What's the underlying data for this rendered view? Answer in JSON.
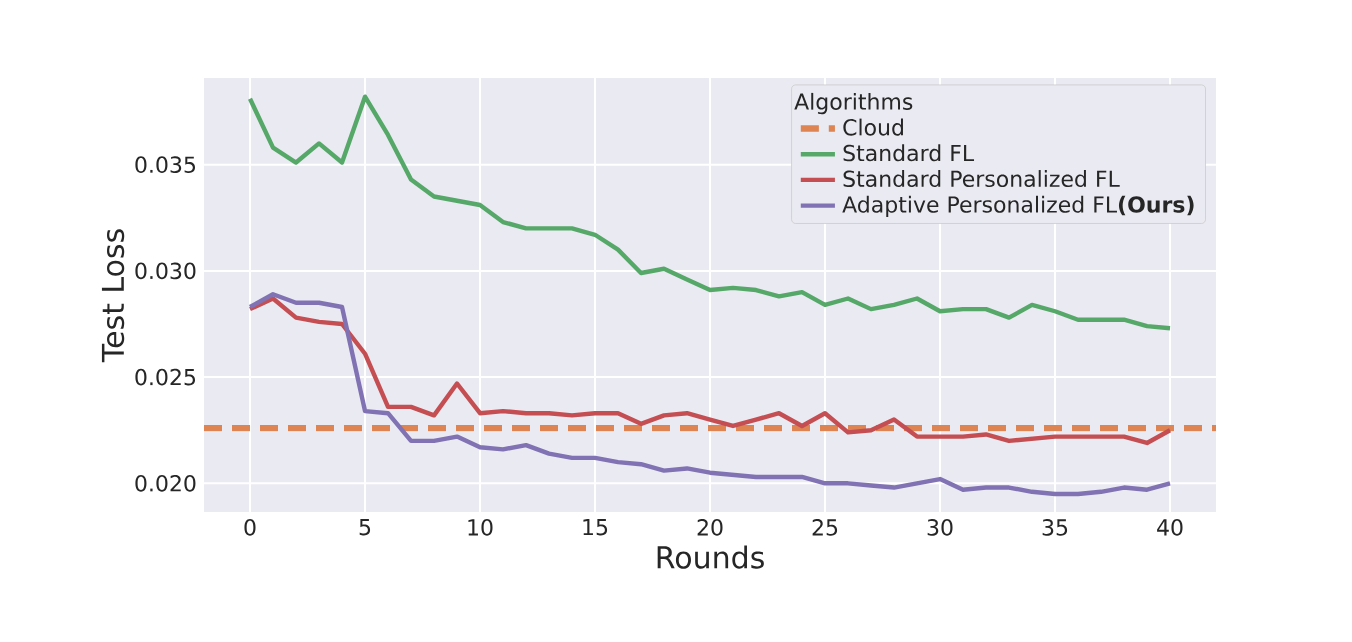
{
  "chart_data": {
    "type": "line",
    "xlabel": "Rounds",
    "ylabel": "Test Loss",
    "legend_title": "Algorithms",
    "legend": "top right",
    "grid": true,
    "xlim": [
      -2,
      42
    ],
    "ylim": [
      0.01865,
      0.03908
    ],
    "xticks": [
      0,
      5,
      10,
      15,
      20,
      25,
      30,
      35,
      40
    ],
    "yticks": [
      {
        "value": 0.02,
        "label": "0.020"
      },
      {
        "value": 0.025,
        "label": "0.025"
      },
      {
        "value": 0.03,
        "label": "0.030"
      },
      {
        "value": 0.035,
        "label": "0.035"
      }
    ],
    "x": [
      0,
      1,
      2,
      3,
      4,
      5,
      6,
      7,
      8,
      9,
      10,
      11,
      12,
      13,
      14,
      15,
      16,
      17,
      18,
      19,
      20,
      21,
      22,
      23,
      24,
      25,
      26,
      27,
      28,
      29,
      30,
      31,
      32,
      33,
      34,
      35,
      36,
      37,
      38,
      39,
      40
    ],
    "series": [
      {
        "name": "Cloud",
        "color": "#dd8452",
        "line_style": "dashed",
        "x": [
          -2,
          42
        ],
        "values": [
          0.0226,
          0.0226
        ]
      },
      {
        "name": "Standard FL",
        "color": "#55a868",
        "values": [
          0.0381,
          0.0358,
          0.0351,
          0.036,
          0.0351,
          0.0382,
          0.0364,
          0.0343,
          0.0335,
          0.0333,
          0.0331,
          0.0323,
          0.032,
          0.032,
          0.032,
          0.0317,
          0.031,
          0.0299,
          0.0301,
          0.0296,
          0.0291,
          0.0292,
          0.0291,
          0.0288,
          0.029,
          0.0284,
          0.0287,
          0.0282,
          0.0284,
          0.0287,
          0.0281,
          0.0282,
          0.0282,
          0.0278,
          0.0284,
          0.0281,
          0.0277,
          0.0277,
          0.0277,
          0.0274,
          0.0273
        ]
      },
      {
        "name": "Standard Personalized FL",
        "color": "#c44e52",
        "values": [
          0.0282,
          0.0287,
          0.0278,
          0.0276,
          0.0275,
          0.0261,
          0.0236,
          0.0236,
          0.0232,
          0.0247,
          0.0233,
          0.0234,
          0.0233,
          0.0233,
          0.0232,
          0.0233,
          0.0233,
          0.0228,
          0.0232,
          0.0233,
          0.023,
          0.0227,
          0.023,
          0.0233,
          0.0227,
          0.0233,
          0.0224,
          0.0225,
          0.023,
          0.0222,
          0.0222,
          0.0222,
          0.0223,
          0.022,
          0.0221,
          0.0222,
          0.0222,
          0.0222,
          0.0222,
          0.0219,
          0.0225
        ]
      },
      {
        "name": "Adaptive Personalized FL**(Ours)**",
        "color": "#8172b3",
        "values": [
          0.0283,
          0.0289,
          0.0285,
          0.0285,
          0.0283,
          0.0234,
          0.0233,
          0.022,
          0.022,
          0.0222,
          0.0217,
          0.0216,
          0.0218,
          0.0214,
          0.0212,
          0.0212,
          0.021,
          0.0209,
          0.0206,
          0.0207,
          0.0205,
          0.0204,
          0.0203,
          0.0203,
          0.0203,
          0.02,
          0.02,
          0.0199,
          0.0198,
          0.02,
          0.0202,
          0.0197,
          0.0198,
          0.0198,
          0.0196,
          0.0195,
          0.0195,
          0.0196,
          0.0198,
          0.0197,
          0.02
        ]
      }
    ]
  }
}
